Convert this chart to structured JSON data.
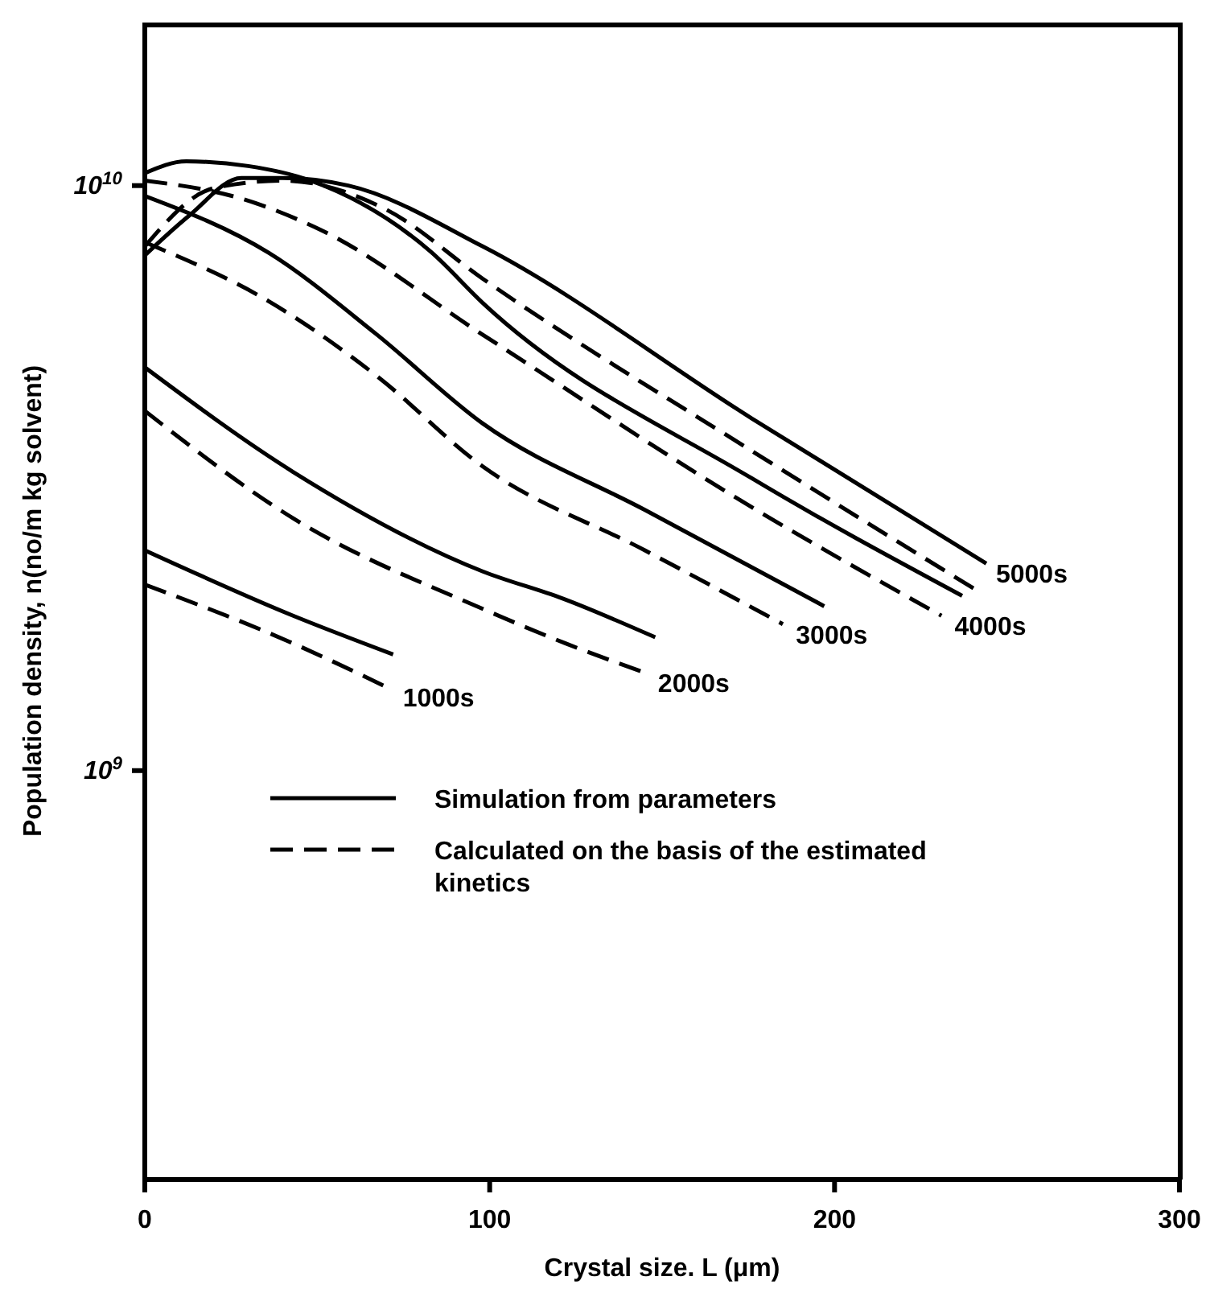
{
  "chart_data": {
    "type": "line",
    "xlabel": "Crystal size. L (μm)",
    "ylabel": "Population density, n(no/m kg solvent)",
    "xlim": [
      0,
      300
    ],
    "xticks": [
      0,
      100,
      200,
      300
    ],
    "ylim": [
      200000000,
      19000000000
    ],
    "log": "y",
    "yticks": [
      {
        "value": 1000000000,
        "label": "10$^{9}$"
      },
      {
        "value": 10000000000,
        "label": "10$^{10}$"
      }
    ],
    "grid": false,
    "marker": "none",
    "legend": "left",
    "series": [
      {
        "name": "Simulation from parameters",
        "color": "#000000",
        "line_style": "solid",
        "x": [
          0,
          43,
          72
        ],
        "values": [
          2380000000,
          1840000000,
          1580000000
        ]
      },
      {
        "name": "Calculated on the basis of the estimated kinetics",
        "color": "#000000",
        "line_style": "dashed",
        "x": [
          0,
          43,
          70
        ],
        "values": [
          2080000000,
          1650000000,
          1390000000
        ]
      },
      {
        "color": "#000000",
        "line_style": "solid",
        "x": [
          0,
          43,
          98,
          121,
          148
        ],
        "values": [
          4890000000,
          3240000000,
          2190000000,
          1970000000,
          1690000000
        ]
      },
      {
        "color": "#000000",
        "line_style": "dashed",
        "x": [
          0,
          43,
          98,
          122,
          145
        ],
        "values": [
          4120000000,
          2700000000,
          1890000000,
          1650000000,
          1470000000
        ]
      },
      {
        "color": "#000000",
        "line_style": "solid",
        "x": [
          0,
          36,
          67,
          98,
          145,
          197
        ],
        "values": [
          9600000000,
          7670000000,
          5580000000,
          3920000000,
          2790000000,
          1910000000
        ]
      },
      {
        "color": "#000000",
        "line_style": "dashed",
        "x": [
          0,
          36,
          67,
          98,
          145,
          185
        ],
        "values": [
          8000000000,
          6340000000,
          4740000000,
          3310000000,
          2380000000,
          1780000000
        ]
      },
      {
        "color": "#000000",
        "line_style": "solid",
        "x": [
          0,
          12,
          30,
          48,
          83,
          98,
          176,
          237
        ],
        "values": [
          10500000000,
          11000000000,
          10800000000,
          10200000000,
          7700000000,
          6300000000,
          3160000000,
          1990000000
        ]
      },
      {
        "color": "#000000",
        "line_style": "dashed",
        "x": [
          0,
          28,
          51,
          98,
          176,
          231
        ],
        "values": [
          10200000000,
          9500000000,
          8400000000,
          5560000000,
          2820000000,
          1840000000
        ]
      },
      {
        "color": "#000000",
        "line_style": "solid",
        "x": [
          0,
          13,
          28,
          40,
          59,
          98,
          176,
          244
        ],
        "values": [
          7600000000,
          8900000000,
          10300000000,
          10300000000,
          10000000000,
          7870000000,
          4000000000,
          2260000000
        ]
      },
      {
        "color": "#000000",
        "line_style": "dashed",
        "x": [
          0,
          20,
          40,
          70,
          98,
          176,
          242
        ],
        "values": [
          7870000000,
          9900000000,
          10200000000,
          9100000000,
          6930000000,
          3520000000,
          2020000000
        ]
      }
    ],
    "annotations": [
      {
        "text": "1000s",
        "x": 72,
        "y": 1390000000
      },
      {
        "text": "2000s",
        "x": 146,
        "y": 1470000000
      },
      {
        "text": "3000s",
        "x": 186,
        "y": 1780000000
      },
      {
        "text": "4000s",
        "x": 232,
        "y": 1840000000
      },
      {
        "text": "5000s",
        "x": 244,
        "y": 2260000000
      }
    ]
  }
}
